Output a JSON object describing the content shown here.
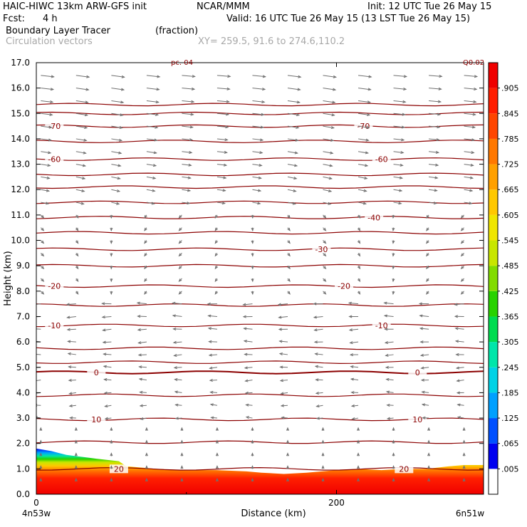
{
  "header": {
    "model": "HAIC-HIWC 13km ARW-GFS init",
    "org": "NCAR/MMM",
    "init": "Init: 12 UTC Tue 26 May 15",
    "fcst_label": "Fcst:",
    "fcst_value": "4 h",
    "valid": "Valid: 16 UTC Tue 26 May 15 (13 LST Tue 26 May 15)",
    "field": "Boundary Layer Tracer",
    "units": "(fraction)",
    "overlay": "Circulation vectors",
    "xsec": "XY= 259.5, 91.6 to 274.6,110.2"
  },
  "corner_labels": {
    "left": "4n53w",
    "right": "6n51w",
    "top_left_clip": "pc. 04",
    "top_right_clip": "Q0.02"
  },
  "chart_data": {
    "type": "heatmap",
    "xlabel": "Distance (km)",
    "ylabel": "Height (km)",
    "xlim": [
      0,
      298
    ],
    "ylim": [
      0,
      17
    ],
    "x_ticks": [
      0,
      200
    ],
    "y_ticks": [
      "0.0",
      "1.0",
      "2.0",
      "3.0",
      "4.0",
      "5.0",
      "6.0",
      "7.0",
      "8.0",
      "9.0",
      "10.0",
      "11.0",
      "12.0",
      "13.0",
      "14.0",
      "15.0",
      "16.0",
      "17.0"
    ],
    "colorbar": {
      "labels": [
        ".005",
        ".065",
        ".125",
        ".185",
        ".245",
        ".305",
        ".365",
        ".425",
        ".485",
        ".545",
        ".605",
        ".665",
        ".725",
        ".785",
        ".845",
        ".905"
      ],
      "colors": [
        "#ffffff",
        "#0000f0",
        "#0050ff",
        "#00a0ff",
        "#00d2e6",
        "#00e6aa",
        "#00dc50",
        "#28d200",
        "#82dc00",
        "#c8e600",
        "#f0e600",
        "#ffc800",
        "#ffa000",
        "#ff7800",
        "#ff4600",
        "#ff1e00",
        "#f00000"
      ]
    },
    "isotherms": [
      {
        "label": "-70",
        "height": 14.5
      },
      {
        "label": "-60",
        "height": 13.2
      },
      {
        "label": "-40",
        "height": 10.9
      },
      {
        "label": "-30",
        "height": 9.65
      },
      {
        "label": "-20",
        "height": 8.2
      },
      {
        "label": "-10",
        "height": 6.65
      },
      {
        "label": "0",
        "height": 4.8
      },
      {
        "label": "10",
        "height": 2.95
      },
      {
        "label": "20",
        "height": 1.0
      }
    ],
    "other_contour_heights": [
      15.35,
      15.0,
      13.9,
      12.6,
      12.1,
      11.5,
      10.3,
      9.0,
      7.45,
      5.75,
      5.2,
      3.9,
      2.05
    ],
    "tracer_top_km": [
      [
        0,
        1.8
      ],
      [
        10,
        1.7
      ],
      [
        20,
        1.55
      ],
      [
        40,
        1.4
      ],
      [
        55,
        1.3
      ],
      [
        60,
        1.1
      ],
      [
        80,
        1.0
      ],
      [
        100,
        0.95
      ],
      [
        120,
        0.95
      ],
      [
        140,
        0.9
      ],
      [
        150,
        0.85
      ],
      [
        165,
        0.8
      ],
      [
        180,
        0.85
      ],
      [
        200,
        0.95
      ],
      [
        215,
        1.0
      ],
      [
        230,
        0.95
      ],
      [
        245,
        1.0
      ],
      [
        260,
        1.0
      ],
      [
        275,
        1.1
      ],
      [
        285,
        1.15
      ],
      [
        298,
        1.15
      ]
    ]
  }
}
